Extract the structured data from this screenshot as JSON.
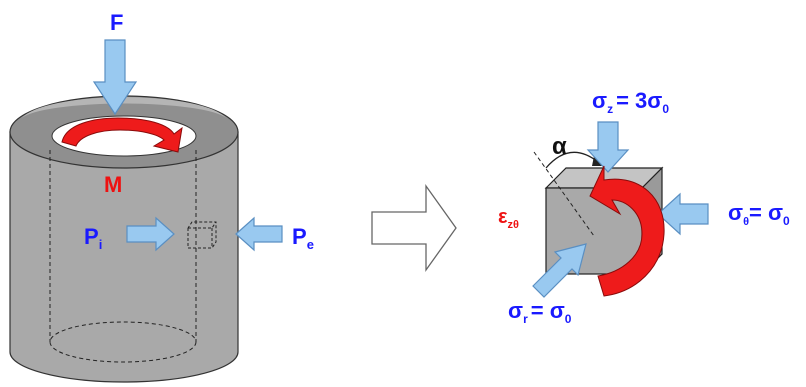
{
  "labels": {
    "force": "F",
    "moment": "M",
    "internal_pressure": "P",
    "internal_pressure_sub": "i",
    "external_pressure": "P",
    "external_pressure_sub": "e",
    "alpha": "α",
    "strain": "ε",
    "strain_sub": "zθ",
    "sigma_z": "σ",
    "sigma_z_sub": "z",
    "sigma_z_rhs": "= 3σ",
    "sigma_z_rhs_sub": "0",
    "sigma_theta": "σ",
    "sigma_theta_sub": "θ",
    "sigma_theta_rhs": "= σ",
    "sigma_theta_rhs_sub": "0",
    "sigma_r": "σ",
    "sigma_r_sub": "r",
    "sigma_r_rhs": "= σ",
    "sigma_r_rhs_sub": "0"
  },
  "colors": {
    "label_blue": "#1a1aff",
    "label_red": "#ee1111",
    "arrow_fill": "#99c9f0",
    "arrow_stroke": "#5a8fc2",
    "body_gray": "#a9a9a9",
    "body_light": "#c4c4c4",
    "top_ring": "#8c8c8c",
    "moment_red": "#ee1b1b"
  }
}
